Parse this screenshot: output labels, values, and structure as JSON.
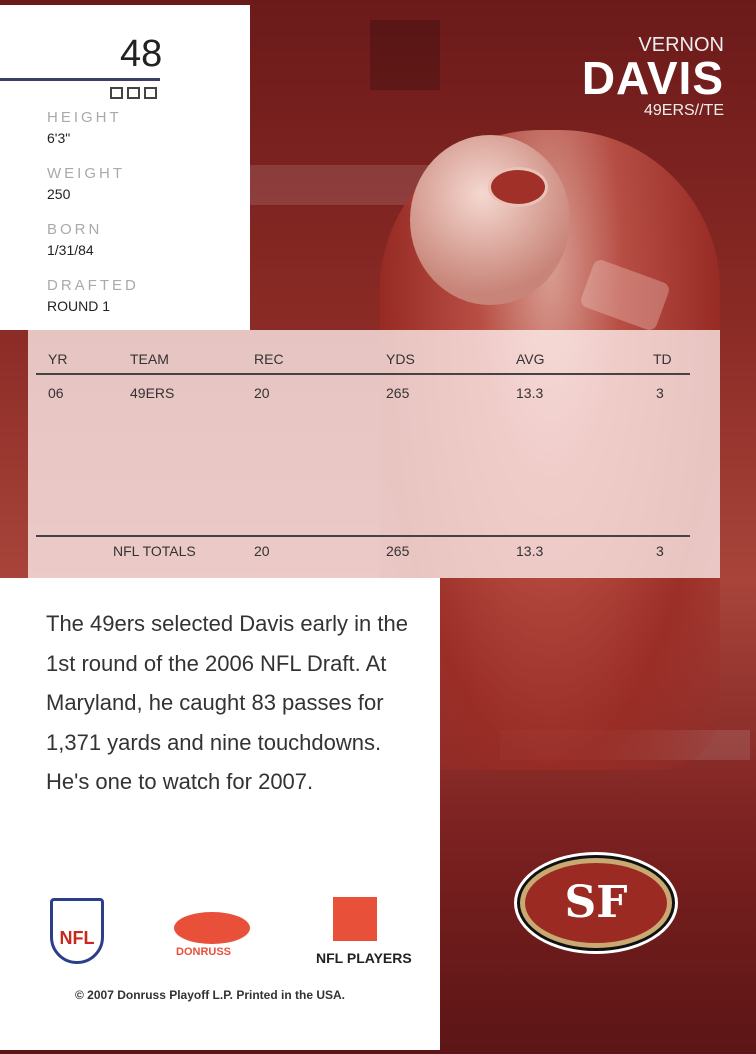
{
  "card_number": "48",
  "player": {
    "first_name": "VERNON",
    "last_name": "DAVIS",
    "team_position": "49ERS//TE"
  },
  "vitals": [
    {
      "label": "HEIGHT",
      "value": "6'3\""
    },
    {
      "label": "WEIGHT",
      "value": "250"
    },
    {
      "label": "BORN",
      "value": "1/31/84"
    },
    {
      "label": "DRAFTED",
      "value": "ROUND 1"
    }
  ],
  "stats": {
    "headers": [
      "YR",
      "TEAM",
      "REC",
      "YDS",
      "AVG",
      "TD"
    ],
    "rows": [
      [
        "06",
        "49ERS",
        "20",
        "265",
        "13.3",
        "3"
      ]
    ],
    "totals": [
      "",
      "NFL TOTALS",
      "20",
      "265",
      "13.3",
      "3"
    ]
  },
  "bio": "The 49ers selected Davis early in the 1st round of the 2006 NFL Draft. At Maryland, he caught 83 passes for 1,371 yards and nine touchdowns. He's one to watch for 2007.",
  "logos": {
    "nfl": "NFL",
    "donruss": "DONRUSS",
    "nfl_players": "NFL PLAYERS",
    "team": "SF"
  },
  "copyright": "© 2007 Donruss Playoff L.P. Printed in the USA.",
  "colors": {
    "team_red": "#8a2a25",
    "accent": "#e8503a",
    "gold": "#c9a872"
  }
}
